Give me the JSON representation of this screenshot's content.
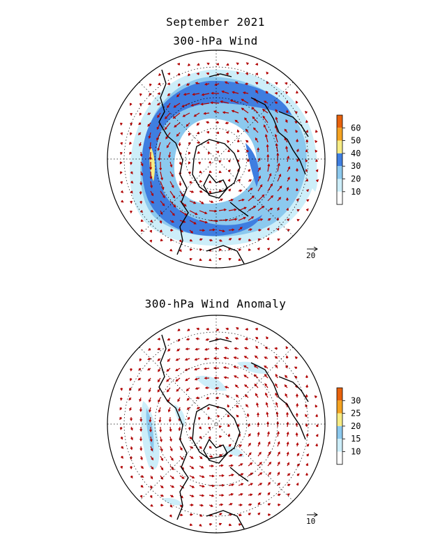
{
  "figure": {
    "title": "September 2021",
    "panels": [
      {
        "name": "mean-wind",
        "title": "300-hPa Wind",
        "reference_vector": "20",
        "colorbar": {
          "ticks": [
            "60",
            "50",
            "40",
            "30",
            "20",
            "10"
          ],
          "colors": [
            "#e8620c",
            "#f5a321",
            "#f7ec84",
            "#3f7ee0",
            "#8cc9ee",
            "#cdeef9",
            "#ffffff"
          ]
        }
      },
      {
        "name": "wind-anomaly",
        "title": "300-hPa Wind Anomaly",
        "reference_vector": "10",
        "colorbar": {
          "ticks": [
            "30",
            "25",
            "20",
            "15",
            "10"
          ],
          "colors": [
            "#e8620c",
            "#f5a321",
            "#f7ec84",
            "#8cc9ee",
            "#cdeef9",
            "#ffffff"
          ]
        }
      }
    ]
  },
  "colors": {
    "vector": "#b00000",
    "coast": "#000000",
    "grid": "#000000"
  }
}
